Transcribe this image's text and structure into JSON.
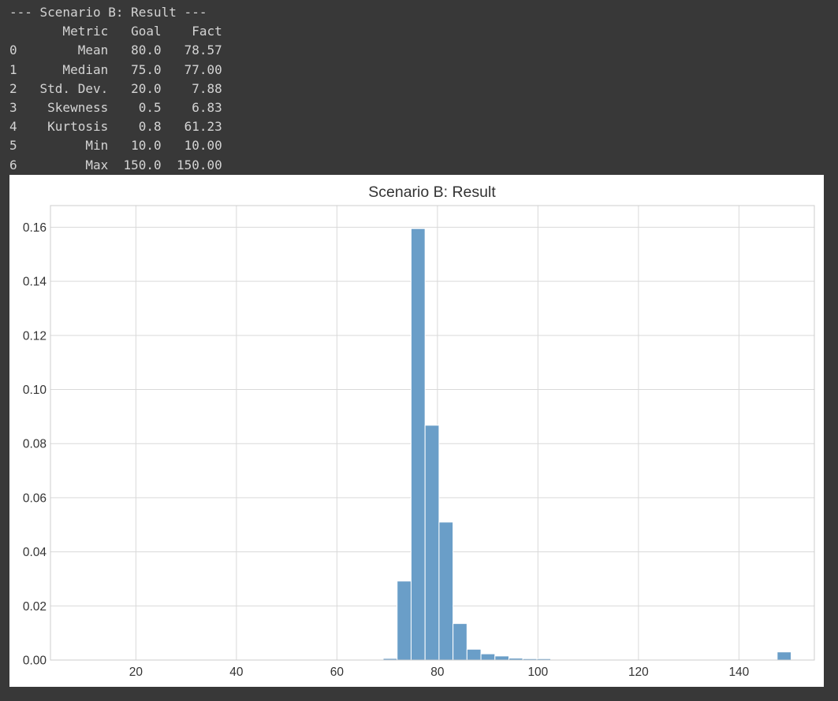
{
  "console": {
    "header": "--- Scenario B: Result ---",
    "table": {
      "columns": [
        "Metric",
        "Goal",
        "Fact"
      ],
      "rows": [
        {
          "index": "0",
          "metric": "Mean",
          "goal": "80.0",
          "fact": "78.57"
        },
        {
          "index": "1",
          "metric": "Median",
          "goal": "75.0",
          "fact": "77.00"
        },
        {
          "index": "2",
          "metric": "Std. Dev.",
          "goal": "20.0",
          "fact": "7.88"
        },
        {
          "index": "3",
          "metric": "Skewness",
          "goal": "0.5",
          "fact": "6.83"
        },
        {
          "index": "4",
          "metric": "Kurtosis",
          "goal": "0.8",
          "fact": "61.23"
        },
        {
          "index": "5",
          "metric": "Min",
          "goal": "10.0",
          "fact": "10.00"
        },
        {
          "index": "6",
          "metric": "Max",
          "goal": "150.0",
          "fact": "150.00"
        }
      ]
    }
  },
  "chart_data": {
    "type": "bar",
    "title": "Scenario B: Result",
    "xlabel": "",
    "ylabel": "",
    "xlim": [
      3,
      155
    ],
    "ylim": [
      0,
      0.168
    ],
    "xticks": [
      20,
      40,
      60,
      80,
      100,
      120,
      140
    ],
    "xtick_labels": [
      "20",
      "40",
      "60",
      "80",
      "100",
      "120",
      "140"
    ],
    "yticks": [
      0,
      0.02,
      0.04,
      0.06,
      0.08,
      0.1,
      0.12,
      0.14,
      0.16
    ],
    "ytick_labels": [
      "0.00",
      "0.02",
      "0.04",
      "0.06",
      "0.08",
      "0.10",
      "0.12",
      "0.14",
      "0.16"
    ],
    "grid": true,
    "bar_color": "#6a9ec8",
    "bins": [
      {
        "x0": 69.2,
        "x1": 71.98,
        "value": 0.0006
      },
      {
        "x0": 71.98,
        "x1": 74.76,
        "value": 0.0292
      },
      {
        "x0": 74.76,
        "x1": 77.54,
        "value": 0.1595
      },
      {
        "x0": 77.54,
        "x1": 80.32,
        "value": 0.0868
      },
      {
        "x0": 80.32,
        "x1": 83.1,
        "value": 0.051
      },
      {
        "x0": 83.1,
        "x1": 85.88,
        "value": 0.0135
      },
      {
        "x0": 85.88,
        "x1": 88.66,
        "value": 0.004
      },
      {
        "x0": 88.66,
        "x1": 91.44,
        "value": 0.0023
      },
      {
        "x0": 91.44,
        "x1": 94.22,
        "value": 0.0015
      },
      {
        "x0": 94.22,
        "x1": 97.0,
        "value": 0.0007
      },
      {
        "x0": 97.0,
        "x1": 99.78,
        "value": 0.0005
      },
      {
        "x0": 99.78,
        "x1": 102.56,
        "value": 0.0005
      },
      {
        "x0": 102.56,
        "x1": 105.34,
        "value": 0.0002
      },
      {
        "x0": 105.34,
        "x1": 108.12,
        "value": 0.0002
      },
      {
        "x0": 147.6,
        "x1": 150.38,
        "value": 0.003
      }
    ]
  }
}
